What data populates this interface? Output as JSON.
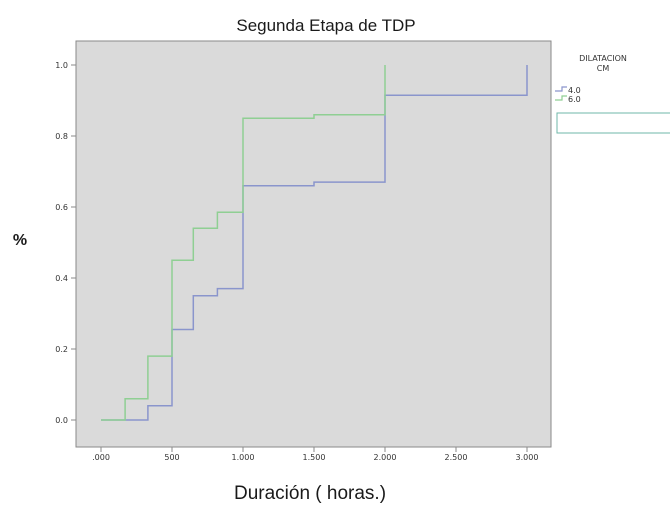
{
  "chart_data": {
    "type": "line",
    "title": "Segunda Etapa de TDP",
    "xlabel": "Duración ( horas.)",
    "ylabel": "%",
    "xlim": [
      0,
      3000
    ],
    "ylim": [
      0,
      1.0
    ],
    "x_ticks": [
      ".000",
      "500",
      "1.000",
      "1.500",
      "2.000",
      "2.500",
      "3.000"
    ],
    "y_ticks": [
      "0.0",
      "0.2",
      "0.4",
      "0.6",
      "0.8",
      "1.0"
    ],
    "grid": false,
    "background_color": "#dadada",
    "legend": {
      "title_line1": "DILATACION",
      "title_line2": "CM",
      "placement": "right"
    },
    "series": [
      {
        "name": "4.0",
        "color": "#8a95cc",
        "x": [
          0,
          330,
          330,
          500,
          500,
          650,
          650,
          820,
          820,
          1000,
          1000,
          1500,
          1500,
          2000,
          2000,
          3000,
          3000
        ],
        "y": [
          0,
          0,
          0.04,
          0.04,
          0.255,
          0.255,
          0.35,
          0.35,
          0.37,
          0.37,
          0.66,
          0.66,
          0.67,
          0.67,
          0.915,
          0.915,
          1.0
        ]
      },
      {
        "name": "6.0",
        "color": "#8fcf93",
        "x": [
          0,
          170,
          170,
          330,
          330,
          500,
          500,
          650,
          650,
          820,
          820,
          1000,
          1000,
          1500,
          1500,
          2000,
          2000
        ],
        "y": [
          0,
          0,
          0.06,
          0.06,
          0.18,
          0.18,
          0.45,
          0.45,
          0.54,
          0.54,
          0.585,
          0.585,
          0.85,
          0.85,
          0.86,
          0.86,
          1.0
        ]
      }
    ]
  }
}
